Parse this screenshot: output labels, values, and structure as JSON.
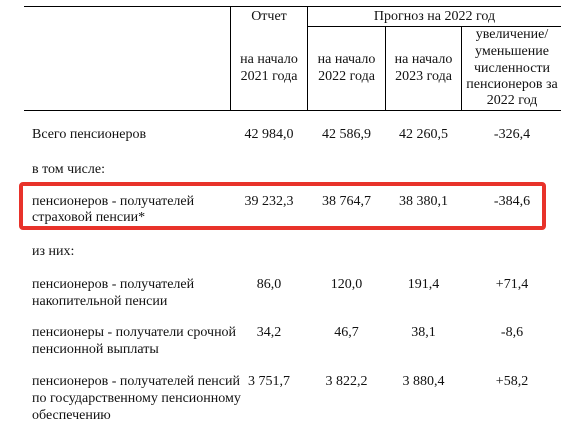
{
  "header": {
    "report": "Отчет",
    "forecast": "Прогноз на 2022 год",
    "col1": [
      "на начало",
      "2021 года"
    ],
    "col2": [
      "на начало",
      "2022 года"
    ],
    "col3": [
      "на начало",
      "2023 года"
    ],
    "col4": [
      "увеличение/",
      "уменьшение",
      "численности",
      "пенсионеров за",
      "2022 год"
    ]
  },
  "rows": [
    {
      "label": [
        "Всего пенсионеров"
      ],
      "values": [
        "42 984,0",
        "42 586,9",
        "42 260,5",
        "-326,4"
      ]
    },
    {
      "label": [
        "в том числе:"
      ]
    },
    {
      "label": [
        "пенсионеров - получателей",
        "страховой пенсии*"
      ],
      "values": [
        "39 232,3",
        "38 764,7",
        "38 380,1",
        "-384,6"
      ]
    },
    {
      "label": [
        "из них:"
      ]
    },
    {
      "label": [
        "пенсионеров - получателей",
        "накопительной пенсии"
      ],
      "values": [
        "86,0",
        "120,0",
        "191,4",
        "+71,4"
      ]
    },
    {
      "label": [
        "пенсионеры - получатели срочной",
        "пенсионной выплаты"
      ],
      "values": [
        "34,2",
        "46,7",
        "38,1",
        "-8,6"
      ]
    },
    {
      "label": [
        "пенсионеров - получателей пенсий",
        "по государственному пенсионному",
        "обеспечению"
      ],
      "values": [
        "3 751,7",
        "3 822,2",
        "3 880,4",
        "+58,2"
      ]
    }
  ],
  "highlight_color": "#e8322a"
}
